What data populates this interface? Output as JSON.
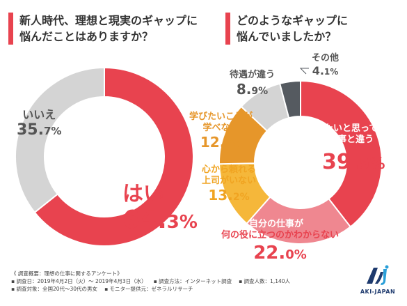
{
  "left_title": [
    "新人時代、理想と現実のギャップに",
    "悩んだことはありますか？"
  ],
  "right_title": [
    "どのようなギャップに",
    "悩んでいましたか？"
  ],
  "chart_data": [
    {
      "type": "pie",
      "title": "新人時代、理想と現実のギャップに悩んだことはありますか？",
      "slices": [
        {
          "label": "はい",
          "value": 64.3,
          "color": "#e8434f"
        },
        {
          "label": "いいえ",
          "value": 35.7,
          "color": "#d4d4d4"
        }
      ]
    },
    {
      "type": "pie",
      "title": "どのようなギャップに悩んでいましたか？",
      "slices": [
        {
          "label": "やりたいと思っていた仕事と違う",
          "value": 39.5,
          "color": "#e8434f"
        },
        {
          "label": "自分の仕事が何の役に立つのかわからない",
          "value": 22.0,
          "color": "#ef8790"
        },
        {
          "label": "心から頼れる上司がいない",
          "value": 13.2,
          "color": "#f5b73a"
        },
        {
          "label": "学びたいことが学べない",
          "value": 12.3,
          "color": "#e6962a"
        },
        {
          "label": "待遇が違う",
          "value": 8.9,
          "color": "#d4d4d4"
        },
        {
          "label": "その他",
          "value": 4.1,
          "color": "#555a60"
        }
      ]
    }
  ],
  "labels": {
    "hai": {
      "text": "はい",
      "num": "64.",
      "unit": "3%"
    },
    "iie": {
      "text": "いいえ",
      "num": "35.",
      "unit": "7%"
    },
    "yaritai": {
      "line1": "やりたいと思っていた",
      "line2": "仕事と違う",
      "num": "39.",
      "unit": "5%"
    },
    "jibun": {
      "line1": "自分の仕事が",
      "line2": "何の役に立つのかわからない",
      "num": "22.",
      "unit": "0%"
    },
    "joshi": {
      "line1": "心から頼れる",
      "line2": "上司がいない",
      "num": "13.",
      "unit": "2%"
    },
    "manabi": {
      "line1": "学びたいことが",
      "line2": "学べない",
      "num": "12.",
      "unit": "3%"
    },
    "taiguu": {
      "line1": "待遇が違う",
      "num": "8.",
      "unit": "9%"
    },
    "sonota": {
      "line1": "その他",
      "num": "4.",
      "unit": "1%"
    }
  },
  "footer": {
    "heading": "《 調査概要：理想の仕事に関するアンケート》",
    "period": "▪ 調査日：2019年4月2日（火）～ 2019年4月3日（水）",
    "method": "▪ 調査方法：インターネット調査",
    "count": "▪ 調査人数：1,140人",
    "target": "▪ 調査対象：全国20代～30代の男女",
    "provider": "▪ モニター提供元：ゼネラルリサーチ"
  },
  "logo": {
    "brand": "AKI-JAPAN",
    "icon": "aki-japan-logo-icon",
    "colors": [
      "#1e3a6e",
      "#2a9fd8"
    ]
  }
}
